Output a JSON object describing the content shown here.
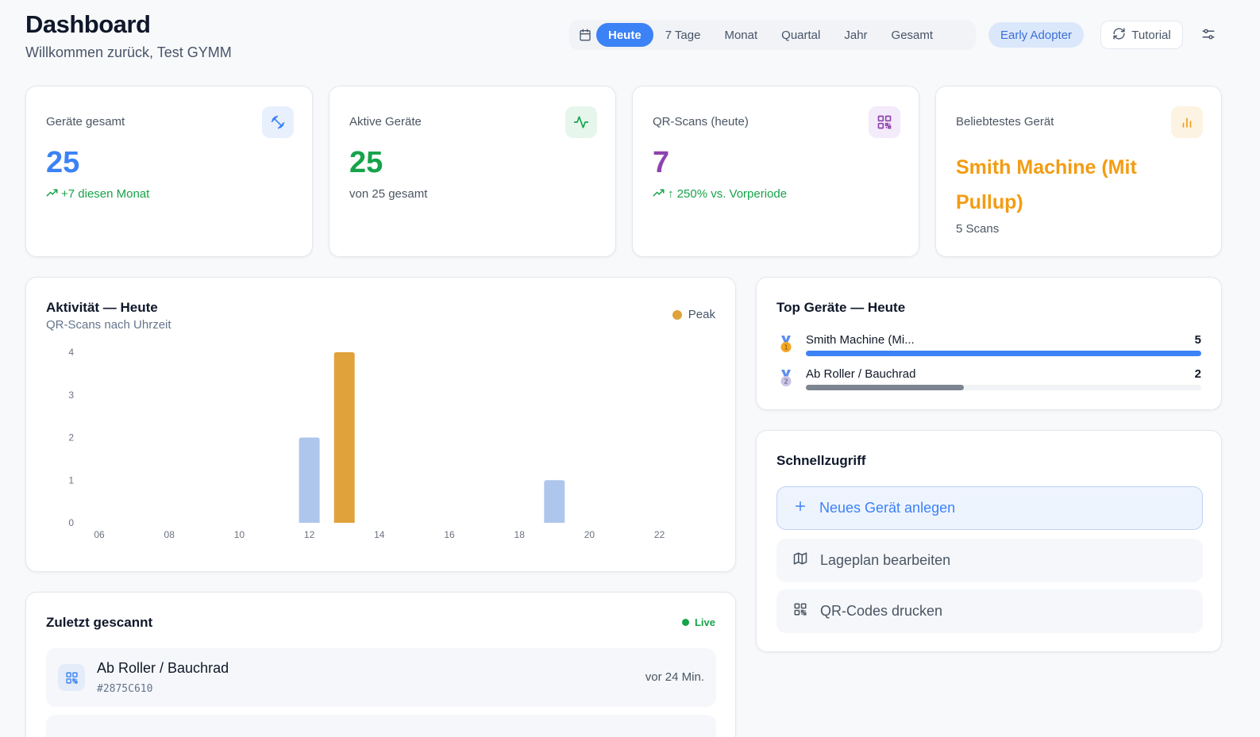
{
  "header": {
    "title": "Dashboard",
    "subtitle": "Willkommen zurück, Test GYMM",
    "periods": [
      "Heute",
      "7 Tage",
      "Monat",
      "Quartal",
      "Jahr",
      "Gesamt"
    ],
    "active_period": "Heute",
    "badge": "Early Adopter",
    "tutorial_label": "Tutorial"
  },
  "stats": {
    "devices_total": {
      "label": "Geräte gesamt",
      "value": "25",
      "sub": "+7 diesen Monat",
      "color": "#3b82f6"
    },
    "active_devices": {
      "label": "Aktive Geräte",
      "value": "25",
      "sub": "von 25 gesamt",
      "color": "#16a34a"
    },
    "qr_scans": {
      "label": "QR-Scans (heute)",
      "value": "7",
      "sub": "↑ 250% vs. Vorperiode",
      "color": "#8e44ad"
    },
    "popular": {
      "label": "Beliebtestes Gerät",
      "value": "Smith Machine (Mit Pullup)",
      "sub": "5 Scans",
      "color": "#f39c12"
    }
  },
  "activity": {
    "title": "Aktivität — Heute",
    "subtitle": "QR-Scans nach Uhrzeit",
    "legend_peak": "Peak"
  },
  "chart_data": {
    "type": "bar",
    "x_tick_labels": [
      "06",
      "08",
      "10",
      "12",
      "14",
      "16",
      "18",
      "20",
      "22"
    ],
    "y_tick_labels": [
      "0",
      "1",
      "2",
      "3",
      "4"
    ],
    "ylim": [
      0,
      4
    ],
    "xlim": [
      6,
      23
    ],
    "bars": [
      {
        "hour": 12,
        "value": 2,
        "peak": false
      },
      {
        "hour": 13,
        "value": 4,
        "peak": true
      },
      {
        "hour": 19,
        "value": 1,
        "peak": false
      }
    ],
    "colors": {
      "normal": "#aec6ec",
      "peak": "#e0a23a"
    },
    "grid": false
  },
  "top_devices": {
    "title": "Top Geräte — Heute",
    "items": [
      {
        "name": "Smith Machine (Mi...",
        "count": "5",
        "fraction": 1.0,
        "color": "#3b82f6",
        "rank": "1"
      },
      {
        "name": "Ab Roller / Bauchrad",
        "count": "2",
        "fraction": 0.4,
        "color": "#7c8590",
        "rank": "2"
      }
    ]
  },
  "quick_access": {
    "title": "Schnellzugriff",
    "new_device": "Neues Gerät anlegen",
    "edit_map": "Lageplan bearbeiten",
    "print_qr": "QR-Codes drucken"
  },
  "recent": {
    "title": "Zuletzt gescannt",
    "live_label": "Live",
    "items": [
      {
        "name": "Ab Roller / Bauchrad",
        "code": "#2875C610",
        "time": "vor 24 Min."
      }
    ]
  }
}
